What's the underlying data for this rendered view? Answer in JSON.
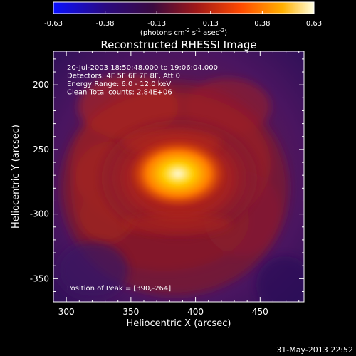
{
  "colors": {
    "background": "#000000",
    "foreground": "#ffffff",
    "colormap": [
      "#0a10ff",
      "#1a0030",
      "#3a1070",
      "#8a1530",
      "#c82810",
      "#ff6a00",
      "#ffb300",
      "#fff8c0"
    ]
  },
  "colorbar": {
    "tick_labels": [
      "-0.63",
      "-0.38",
      "-0.13",
      "0.13",
      "0.38",
      "0.63"
    ],
    "tick_values": [
      -0.63,
      -0.38,
      -0.13,
      0.13,
      0.38,
      0.63
    ],
    "range": [
      -0.63,
      0.63
    ],
    "units_base": "(photons cm",
    "units_exp1": "-2",
    "units_mid1": " s",
    "units_exp2": "-1",
    "units_mid2": " asec",
    "units_exp3": "-2",
    "units_end": ")"
  },
  "info_lines": [
    "20-Jul-2003 18:50:48.000 to 19:06:04.000",
    "Detectors: 4F 5F 6F 7F 8F, Att 0",
    "Energy Range: 6.0 - 12.0 keV",
    "Clean    Total counts: 2.84E+06"
  ],
  "peak_label": "Position of Peak = [390,-264]",
  "timestamp": "31-May-2013 22:52",
  "chart_data": {
    "type": "heatmap",
    "title": "Reconstructed RHESSI Image",
    "xlabel": "Heliocentric X (arcsec)",
    "ylabel": "Heliocentric Y (arcsec)",
    "xlim": [
      290,
      484
    ],
    "ylim": [
      -368,
      -174
    ],
    "x_ticks": [
      300,
      350,
      400,
      450
    ],
    "y_ticks": [
      -200,
      -250,
      -300,
      -350
    ],
    "x_tick_labels": [
      "300",
      "350",
      "400",
      "450"
    ],
    "y_tick_labels": [
      "-200",
      "-250",
      "-300",
      "-350"
    ],
    "peak": [
      390,
      -264
    ],
    "peak_value": 0.63
  }
}
